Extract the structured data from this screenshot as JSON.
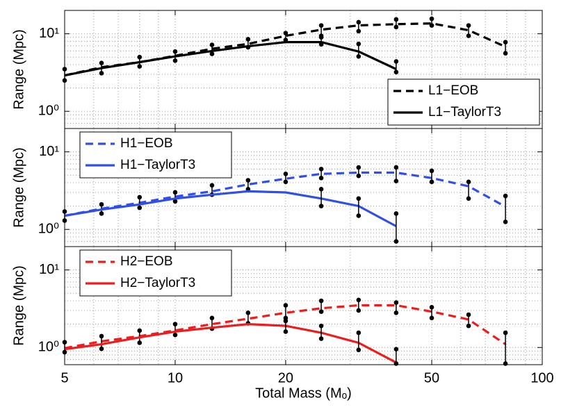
{
  "chart_data": [
    {
      "type": "line",
      "xscale": "log",
      "yscale": "log",
      "grid": true,
      "legend": "lower right",
      "ylabel": "Range (Mpc)",
      "x": [
        5,
        6.3,
        8,
        10,
        12.6,
        15.8,
        20,
        25,
        31.6,
        40,
        50,
        63,
        79.4
      ],
      "xlim": [
        5,
        100
      ],
      "xticks": [
        5,
        10,
        20,
        50,
        100
      ],
      "xminorticks": [
        6,
        7,
        8,
        9,
        30,
        40,
        60,
        70,
        80,
        90
      ],
      "ylim": [
        0.6,
        20
      ],
      "yticks": [
        {
          "value": 1,
          "label": "10⁰"
        },
        {
          "value": 10,
          "label": "10¹"
        }
      ],
      "yminorticks": [
        0.7,
        0.8,
        0.9,
        2,
        3,
        4,
        5,
        6,
        7,
        8,
        9
      ],
      "series": [
        {
          "name": "L1−EOB",
          "color": "#000000",
          "dash": true,
          "values": [
            2.9,
            3.7,
            4.3,
            5.2,
            6.4,
            7.4,
            9.4,
            11.3,
            12.8,
            13.3,
            13.6,
            11.1,
            6.8
          ],
          "err_low": [
            2.5,
            3.1,
            3.8,
            4.5,
            5.5,
            6.7,
            8.3,
            9.4,
            10.8,
            12.2,
            12.8,
            9.4,
            5.6
          ],
          "err_high": [
            3.5,
            4.2,
            5.0,
            5.9,
            7.2,
            8.5,
            10.2,
            12.8,
            14.1,
            15.3,
            15.6,
            12.8,
            7.8
          ]
        },
        {
          "name": "L1−TaylorT3",
          "color": "#000000",
          "dash": false,
          "values": [
            2.9,
            3.6,
            4.3,
            5.1,
            6.0,
            6.9,
            7.8,
            7.8,
            5.9,
            3.5,
            null,
            null,
            null
          ],
          "err_low": [
            null,
            null,
            null,
            null,
            null,
            null,
            null,
            7.3,
            5.1,
            3.2,
            null,
            null,
            null
          ],
          "err_high": [
            null,
            null,
            null,
            null,
            null,
            null,
            null,
            9.0,
            7.4,
            4.4,
            null,
            null,
            null
          ]
        }
      ]
    },
    {
      "type": "line",
      "xscale": "log",
      "yscale": "log",
      "grid": true,
      "legend": "upper left",
      "ylabel": "Range (Mpc)",
      "x": [
        5,
        6.3,
        8,
        10,
        12.6,
        15.8,
        20,
        25,
        31.6,
        40,
        50,
        63,
        79.4
      ],
      "xlim": [
        5,
        100
      ],
      "xticks": [
        5,
        10,
        20,
        50,
        100
      ],
      "xminorticks": [
        6,
        7,
        8,
        9,
        30,
        40,
        60,
        70,
        80,
        90
      ],
      "ylim": [
        0.6,
        20
      ],
      "yticks": [
        {
          "value": 1,
          "label": "10⁰"
        },
        {
          "value": 10,
          "label": "10¹"
        }
      ],
      "yminorticks": [
        0.7,
        0.8,
        0.9,
        2,
        3,
        4,
        5,
        6,
        7,
        8,
        9
      ],
      "series": [
        {
          "name": "H1−EOB",
          "color": "#2f4fe8",
          "dash": true,
          "values": [
            1.5,
            1.85,
            2.2,
            2.65,
            3.1,
            3.8,
            4.5,
            5.2,
            5.4,
            5.4,
            4.6,
            3.6,
            1.96
          ],
          "err_low": [
            1.3,
            1.6,
            1.9,
            2.3,
            2.8,
            3.3,
            4.1,
            4.6,
            4.9,
            4.2,
            4.1,
            2.5,
            1.25
          ],
          "err_high": [
            1.7,
            2.1,
            2.6,
            3.0,
            3.7,
            4.3,
            5.2,
            6.0,
            6.3,
            6.3,
            5.7,
            4.1,
            2.7
          ]
        },
        {
          "name": "H1−TaylorT3",
          "color": "#2f4fe8",
          "dash": false,
          "values": [
            1.5,
            1.8,
            2.1,
            2.5,
            2.8,
            3.1,
            3.0,
            2.5,
            2.0,
            1.1,
            null,
            null,
            null
          ],
          "err_low": [
            null,
            null,
            null,
            null,
            null,
            null,
            null,
            2.0,
            1.5,
            0.7,
            null,
            null,
            null
          ],
          "err_high": [
            null,
            null,
            null,
            null,
            null,
            null,
            null,
            3.3,
            2.5,
            1.6,
            null,
            null,
            null
          ]
        }
      ]
    },
    {
      "type": "line",
      "xscale": "log",
      "yscale": "log",
      "grid": true,
      "legend": "upper left",
      "ylabel": "Range (Mpc)",
      "xlabel": "Total Mass (Mₒ)",
      "x": [
        5,
        6.3,
        8,
        10,
        12.6,
        15.8,
        20,
        25,
        31.6,
        40,
        50,
        63,
        79.4
      ],
      "xlim": [
        5,
        100
      ],
      "xticks": [
        5,
        10,
        20,
        50,
        100
      ],
      "xminorticks": [
        6,
        7,
        8,
        9,
        30,
        40,
        60,
        70,
        80,
        90
      ],
      "ylim": [
        0.6,
        20
      ],
      "yticks": [
        {
          "value": 1,
          "label": "10⁰"
        },
        {
          "value": 10,
          "label": "10¹"
        }
      ],
      "yminorticks": [
        0.7,
        0.8,
        0.9,
        2,
        3,
        4,
        5,
        6,
        7,
        8,
        9
      ],
      "series": [
        {
          "name": "H2−EOB",
          "color": "#ee1c1c",
          "dash": true,
          "values": [
            0.98,
            1.2,
            1.4,
            1.66,
            2.0,
            2.35,
            2.8,
            3.2,
            3.5,
            3.5,
            2.9,
            2.3,
            1.1
          ],
          "err_low": [
            0.87,
            0.96,
            1.15,
            1.45,
            1.75,
            2.05,
            2.4,
            2.9,
            3.0,
            2.8,
            2.4,
            1.9,
            0.62
          ],
          "err_high": [
            1.17,
            1.4,
            1.65,
            2.0,
            2.4,
            2.8,
            3.5,
            4.0,
            4.1,
            3.8,
            3.3,
            2.65,
            1.55
          ]
        },
        {
          "name": "H2−TaylorT3",
          "color": "#ee1c1c",
          "dash": false,
          "values": [
            0.95,
            1.1,
            1.35,
            1.6,
            1.8,
            2.0,
            1.9,
            1.55,
            1.15,
            0.64,
            null,
            null,
            null
          ],
          "err_low": [
            null,
            null,
            null,
            null,
            null,
            null,
            1.6,
            1.3,
            0.93,
            0.62,
            null,
            null,
            null
          ],
          "err_high": [
            null,
            null,
            null,
            null,
            null,
            null,
            2.2,
            1.9,
            1.55,
            0.95,
            null,
            null,
            null
          ]
        }
      ]
    }
  ]
}
